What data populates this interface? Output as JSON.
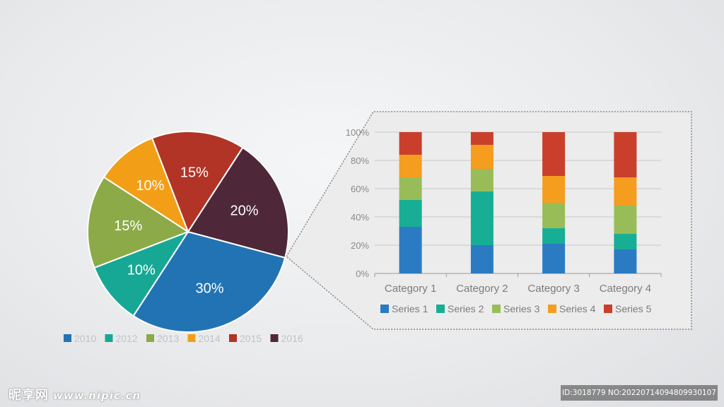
{
  "chart_data": [
    {
      "type": "pie",
      "categories": [
        "2010",
        "2012",
        "2013",
        "2014",
        "2015",
        "2016"
      ],
      "values": [
        30,
        10,
        15,
        10,
        15,
        20
      ],
      "labels": [
        "30%",
        "10%",
        "15%",
        "10%",
        "15%",
        "20%"
      ],
      "colors": [
        "#2273b4",
        "#17a895",
        "#8caa48",
        "#f29f17",
        "#b13426",
        "#4e2838"
      ],
      "legend_position": "bottom"
    },
    {
      "type": "bar",
      "stacked": "percent",
      "categories": [
        "Category 1",
        "Category 2",
        "Category 3",
        "Category 4"
      ],
      "series": [
        {
          "name": "Series 1",
          "values": [
            33,
            20,
            21,
            17
          ],
          "color": "#2b7bc2"
        },
        {
          "name": "Series 2",
          "values": [
            19,
            38,
            11,
            11
          ],
          "color": "#17ae95"
        },
        {
          "name": "Series 3",
          "values": [
            16,
            16,
            18,
            20
          ],
          "color": "#98bd58"
        },
        {
          "name": "Series 4",
          "values": [
            16,
            17,
            19,
            20
          ],
          "color": "#f49d1f"
        },
        {
          "name": "Series 5",
          "values": [
            16,
            9,
            31,
            32
          ],
          "color": "#c93f2c"
        }
      ],
      "yticks": [
        "0%",
        "20%",
        "40%",
        "60%",
        "80%",
        "100%"
      ],
      "ylim": [
        0,
        100
      ],
      "grid": true,
      "legend_position": "bottom"
    }
  ],
  "watermark": {
    "logo_text": "昵享网",
    "url": "www.nipic.cn",
    "id_text": "ID:3018779 NO:20220714094809930107"
  }
}
